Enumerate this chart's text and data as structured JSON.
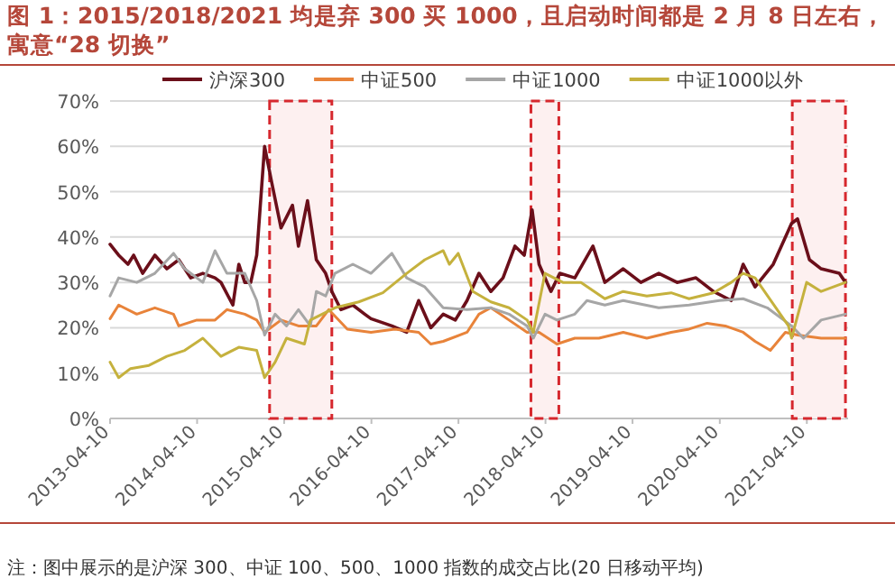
{
  "chart_data": {
    "type": "line",
    "title": "图 1：2015/2018/2021 均是弃 300 买 1000，且启动时间都是 2 月 8 日左右，寓意“28 切换”",
    "annotations": [
      "注：图中展示的是沪深 300、中证 100、500、1000 指数的成交占比(20 日移动平均)"
    ],
    "xlim": [
      "2013-04-10",
      "2021-09-30"
    ],
    "xticks": [
      "2013-04-10",
      "2014-04-10",
      "2015-04-10",
      "2016-04-10",
      "2017-04-10",
      "2018-04-10",
      "2019-04-10",
      "2020-04-10",
      "2021-04-10"
    ],
    "ylim": [
      0,
      70
    ],
    "yticks": [
      {
        "value": 0,
        "label": "0%"
      },
      {
        "value": 10,
        "label": "10%"
      },
      {
        "value": 20,
        "label": "20%"
      },
      {
        "value": 30,
        "label": "30%"
      },
      {
        "value": 40,
        "label": "40%"
      },
      {
        "value": 50,
        "label": "50%"
      },
      {
        "value": 60,
        "label": "60%"
      },
      {
        "value": 70,
        "label": "70%"
      }
    ],
    "grid": "y",
    "legend": "top",
    "marker": "none",
    "line_style": "solid",
    "bands": [
      {
        "axis": "x",
        "from": "2015-02-08",
        "to": "2015-10-27",
        "color": "#d6282e"
      },
      {
        "axis": "x",
        "from": "2018-02-08",
        "to": "2018-06-05",
        "color": "#d6282e"
      },
      {
        "axis": "x",
        "from": "2021-02-08",
        "to": "2021-09-19",
        "color": "#d6282e"
      }
    ],
    "series": [
      {
        "name": "沪深300",
        "color": "#6b0f1a",
        "x": [
          "2013-04-10",
          "2013-05-16",
          "2013-06-24",
          "2013-07-18",
          "2013-08-25",
          "2013-10-15",
          "2013-12-04",
          "2014-01-23",
          "2014-03-14",
          "2014-05-04",
          "2014-06-24",
          "2014-07-19",
          "2014-09-07",
          "2014-10-02",
          "2014-10-27",
          "2014-11-21",
          "2014-12-16",
          "2015-01-18",
          "2015-02-17",
          "2015-03-28",
          "2015-05-15",
          "2015-06-09",
          "2015-07-17",
          "2015-08-23",
          "2015-10-01",
          "2015-10-27",
          "2015-12-04",
          "2016-01-23",
          "2016-03-13",
          "2016-04-08",
          "2016-07-05",
          "2016-09-05",
          "2016-10-25",
          "2016-12-15",
          "2017-02-05",
          "2017-03-28",
          "2017-05-16",
          "2017-07-05",
          "2017-08-24",
          "2017-10-14",
          "2017-12-03",
          "2018-01-11",
          "2018-02-13",
          "2018-03-14",
          "2018-05-03",
          "2018-06-09",
          "2018-08-11",
          "2018-10-26",
          "2018-12-15",
          "2019-03-02",
          "2019-05-15",
          "2019-07-29",
          "2019-10-14",
          "2020-01-01",
          "2020-03-14",
          "2020-05-28",
          "2020-07-17",
          "2020-09-05",
          "2020-11-20",
          "2021-02-05",
          "2021-03-02",
          "2021-04-21",
          "2021-06-09",
          "2021-08-24",
          "2021-09-19"
        ],
        "values": [
          38.4,
          36,
          34,
          36,
          32,
          36,
          33,
          35,
          31,
          32,
          31,
          30,
          25,
          34,
          30,
          30,
          36,
          60,
          52,
          42,
          47,
          38,
          48,
          35,
          32,
          28,
          24,
          25,
          23,
          22,
          20.4,
          19,
          26,
          20,
          23,
          21.7,
          26,
          32,
          28,
          31,
          38,
          36,
          46,
          34,
          28,
          32,
          31,
          38,
          30,
          33,
          30,
          32,
          30,
          31,
          28,
          26,
          34,
          29,
          34,
          43,
          44,
          35,
          33,
          32,
          30
        ]
      },
      {
        "name": "中证500",
        "color": "#e8833a",
        "x": [
          "2013-04-10",
          "2013-05-16",
          "2013-07-31",
          "2013-10-15",
          "2014-01-01",
          "2014-01-23",
          "2014-04-09",
          "2014-06-24",
          "2014-08-13",
          "2014-10-27",
          "2014-12-16",
          "2015-01-18",
          "2015-03-28",
          "2015-06-09",
          "2015-08-23",
          "2015-10-14",
          "2015-12-31",
          "2016-04-08",
          "2016-07-17",
          "2016-10-25",
          "2016-12-15",
          "2017-02-05",
          "2017-05-16",
          "2017-07-05",
          "2017-08-24",
          "2017-11-08",
          "2018-01-23",
          "2018-03-14",
          "2018-05-28",
          "2018-08-11",
          "2018-11-20",
          "2019-03-02",
          "2019-06-09",
          "2019-09-19",
          "2019-12-03",
          "2020-02-17",
          "2020-05-03",
          "2020-07-17",
          "2020-09-05",
          "2020-11-08",
          "2021-01-10",
          "2021-03-02",
          "2021-06-09",
          "2021-09-19"
        ],
        "values": [
          22,
          25,
          23,
          24.4,
          23,
          20.4,
          21.7,
          21.7,
          24,
          23,
          21.7,
          19,
          21.7,
          20.4,
          20.4,
          24,
          19.7,
          19,
          19.7,
          19,
          16.4,
          17,
          19,
          23,
          24.4,
          21.7,
          19,
          19,
          16.4,
          17.7,
          17.7,
          19,
          17.7,
          19,
          19.7,
          21,
          20.4,
          19,
          17,
          15,
          19,
          18.4,
          17.7,
          17.7
        ]
      },
      {
        "name": "中证1000",
        "color": "#a6a6a6",
        "x": [
          "2013-04-10",
          "2013-05-16",
          "2013-07-31",
          "2013-10-15",
          "2014-01-01",
          "2014-02-17",
          "2014-05-04",
          "2014-06-24",
          "2014-08-13",
          "2014-10-27",
          "2014-12-16",
          "2015-01-18",
          "2015-03-03",
          "2015-04-20",
          "2015-06-09",
          "2015-07-29",
          "2015-08-23",
          "2015-10-01",
          "2015-11-09",
          "2016-01-23",
          "2016-04-08",
          "2016-07-05",
          "2016-09-05",
          "2016-11-20",
          "2017-02-05",
          "2017-05-16",
          "2017-08-24",
          "2017-11-08",
          "2018-01-23",
          "2018-02-18",
          "2018-04-08",
          "2018-05-28",
          "2018-08-11",
          "2018-10-01",
          "2018-12-15",
          "2019-03-02",
          "2019-07-29",
          "2019-12-03",
          "2020-04-08",
          "2020-07-17",
          "2020-10-26",
          "2021-02-05",
          "2021-03-27",
          "2021-06-09",
          "2021-09-19"
        ],
        "values": [
          27,
          31,
          30,
          32,
          36.4,
          33,
          30,
          37,
          32,
          32,
          26,
          18.4,
          23,
          20.4,
          24,
          20.4,
          28,
          27,
          32,
          34,
          32,
          36.4,
          31,
          29,
          24.4,
          24,
          24.4,
          23,
          20.4,
          17.7,
          23,
          21.7,
          23,
          26,
          25,
          26,
          24.4,
          25,
          26,
          26.4,
          24.4,
          20.4,
          17.7,
          21.7,
          23
        ]
      },
      {
        "name": "中证1000以外",
        "color": "#c5b13d",
        "x": [
          "2013-04-10",
          "2013-05-16",
          "2013-07-05",
          "2013-09-20",
          "2013-12-04",
          "2014-02-17",
          "2014-05-04",
          "2014-07-19",
          "2014-10-02",
          "2014-12-16",
          "2015-01-18",
          "2015-03-03",
          "2015-04-20",
          "2015-07-04",
          "2015-07-29",
          "2015-11-09",
          "2016-02-17",
          "2016-05-28",
          "2016-09-05",
          "2016-11-20",
          "2017-02-05",
          "2017-03-03",
          "2017-04-09",
          "2017-06-10",
          "2017-08-24",
          "2017-11-08",
          "2018-01-23",
          "2018-02-18",
          "2018-04-08",
          "2018-06-22",
          "2018-09-06",
          "2018-12-15",
          "2019-03-02",
          "2019-06-09",
          "2019-09-19",
          "2019-12-03",
          "2020-03-14",
          "2020-05-28",
          "2020-07-17",
          "2020-09-05",
          "2021-01-23",
          "2021-02-05",
          "2021-04-09",
          "2021-06-09",
          "2021-09-19"
        ],
        "values": [
          12.4,
          9,
          11,
          11.7,
          13.7,
          15,
          17.7,
          13.7,
          15.7,
          15,
          9,
          12.4,
          17.7,
          16.4,
          21.7,
          24.4,
          25.7,
          27.7,
          32,
          35,
          37,
          34,
          36.4,
          28,
          25.7,
          24.4,
          21.7,
          19,
          32,
          30,
          30,
          26.4,
          28,
          27,
          27.7,
          26.4,
          27.7,
          30,
          32,
          31,
          20.4,
          17.7,
          30,
          28,
          30
        ]
      }
    ]
  }
}
